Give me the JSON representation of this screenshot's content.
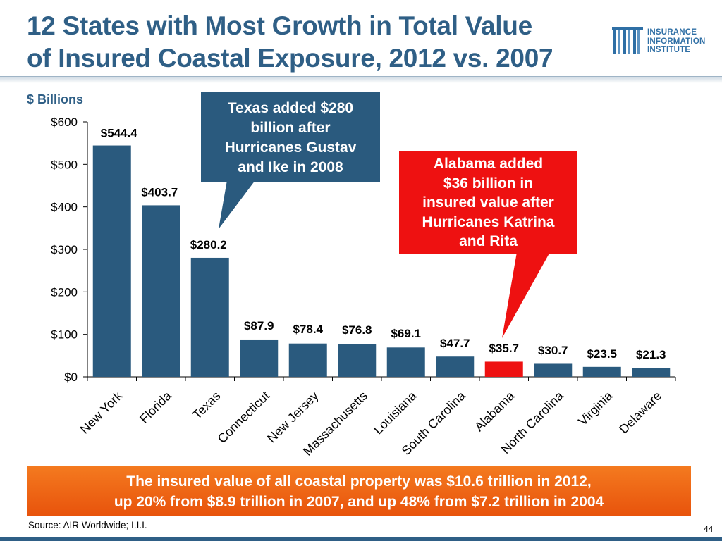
{
  "title_line1": "12 States with Most Growth in Total Value",
  "title_line2": "of Insured Coastal Exposure, 2012 vs. 2007",
  "logo": {
    "line1": "INSURANCE",
    "line2": "INFORMATION",
    "line3": "INSTITUTE",
    "color": "#2f6fa5"
  },
  "callouts": {
    "texas": [
      "Texas added $280",
      "billion after",
      "Hurricanes Gustav",
      "and Ike in 2008"
    ],
    "alabama": [
      "Alabama added",
      "$36 billion in",
      "insured value after",
      "Hurricanes Katrina",
      "and Rita"
    ]
  },
  "banner": {
    "line1": "The insured value of all coastal property was $10.6 trillion in 2012,",
    "line2": "up 20% from $8.9 trillion in 2007, and up 48% from $7.2 trillion in 2004"
  },
  "source": "Source: AIR Worldwide; I.I.I.",
  "page_number": "44",
  "chart_data": {
    "type": "bar",
    "title": "12 States with Most Growth in Total Value of Insured Coastal Exposure, 2012 vs. 2007",
    "ylabel": "$ Billions",
    "xlabel": "",
    "ylim": [
      0,
      600
    ],
    "yticks": [
      "$0",
      "$100",
      "$200",
      "$300",
      "$400",
      "$500",
      "$600"
    ],
    "categories": [
      "New York",
      "Florida",
      "Texas",
      "Connecticut",
      "New Jersey",
      "Massachusetts",
      "Louisiana",
      "South Carolina",
      "Alabama",
      "North Carolina",
      "Virginia",
      "Delaware"
    ],
    "values": [
      544.4,
      403.7,
      280.2,
      87.9,
      78.4,
      76.8,
      69.1,
      47.7,
      35.7,
      30.7,
      23.5,
      21.3
    ],
    "value_labels": [
      "$544.4",
      "$403.7",
      "$280.2",
      "$87.9",
      "$78.4",
      "$76.8",
      "$69.1",
      "$47.7",
      "$35.7",
      "$30.7",
      "$23.5",
      "$21.3"
    ],
    "bar_color": "#2a5a7e",
    "highlight_color": "#ee1111",
    "highlight_category": "Alabama",
    "legend": "none",
    "grid": false
  }
}
